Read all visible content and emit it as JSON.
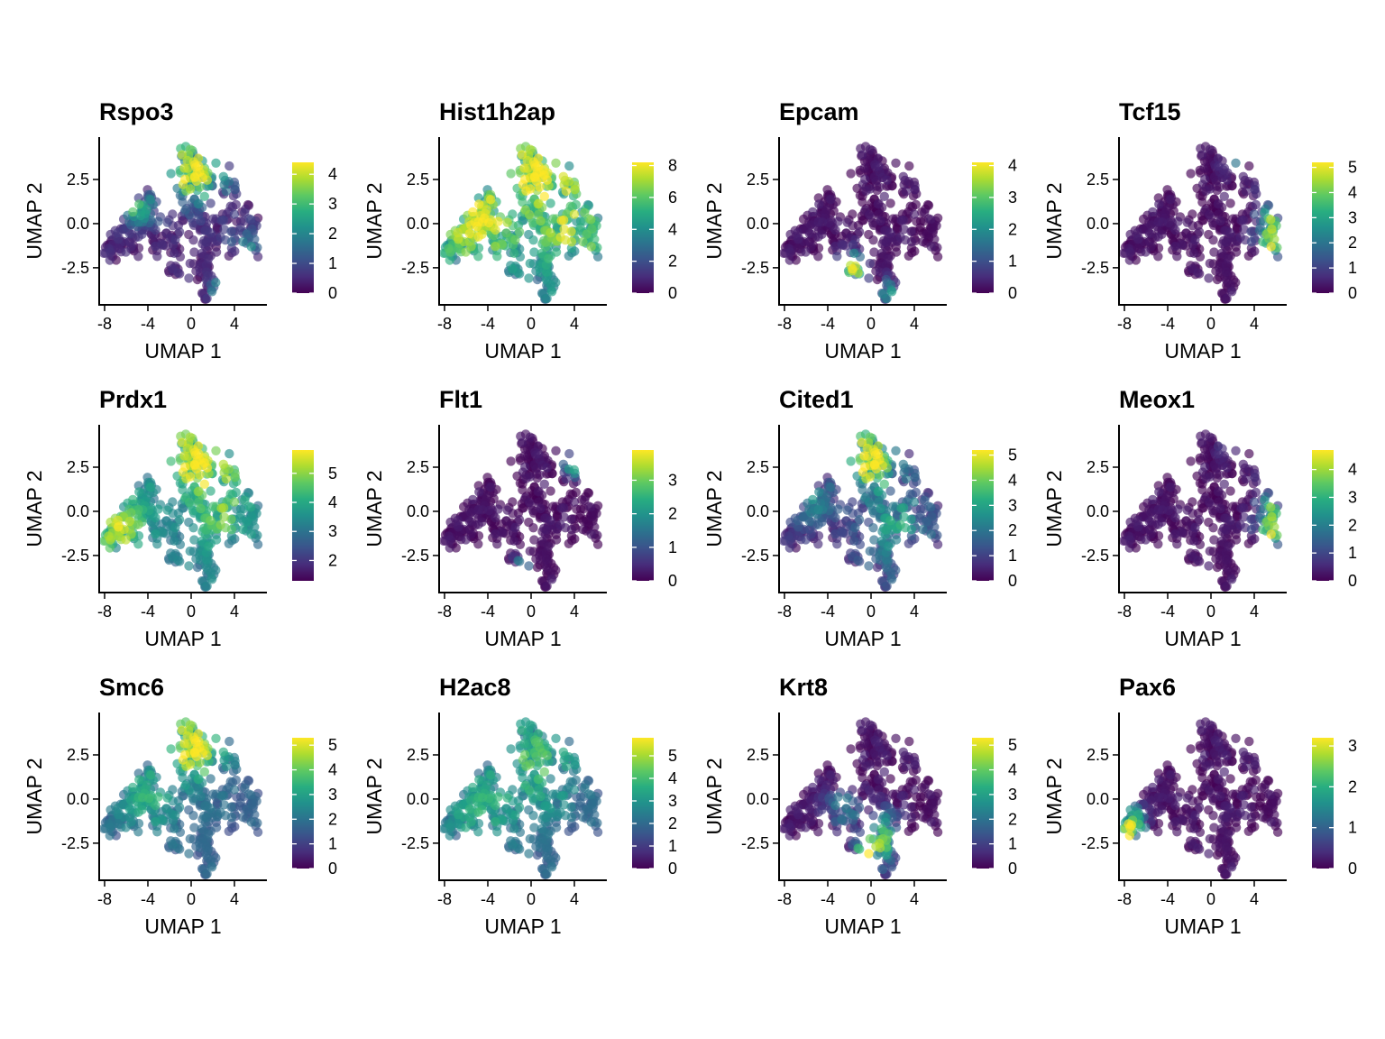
{
  "chart_data": [
    {
      "type": "scatter",
      "title": "Rspo3",
      "xlabel": "UMAP 1",
      "ylabel": "UMAP 2",
      "xticks": [
        -8,
        -4,
        0,
        4
      ],
      "yticks": [
        -2.5,
        0.0,
        2.5
      ],
      "xlim": [
        -8.5,
        7.0
      ],
      "ylim": [
        -4.6,
        4.9
      ],
      "colorbar": {
        "ticks": [
          0,
          1,
          2,
          3,
          4
        ],
        "max": 4.4
      },
      "hotspots": [
        {
          "x": 0,
          "y": 3,
          "sx": 2.2,
          "sy": 1.3,
          "v": 3.6
        },
        {
          "x": -5,
          "y": 0.8,
          "sx": 1.3,
          "sy": 0.6,
          "v": 2.2
        },
        {
          "x": 3.3,
          "y": -3.6,
          "sx": 0.8,
          "sy": 0.6,
          "v": 4.0
        },
        {
          "x": 5,
          "y": -1.5,
          "sx": 1,
          "sy": 1,
          "v": 1.8
        }
      ],
      "base": 0.3
    },
    {
      "type": "scatter",
      "title": "Hist1h2ap",
      "xlabel": "UMAP 1",
      "ylabel": "UMAP 2",
      "xticks": [
        -8,
        -4,
        0,
        4
      ],
      "yticks": [
        -2.5,
        0.0,
        2.5
      ],
      "xlim": [
        -8.5,
        7.0
      ],
      "ylim": [
        -4.6,
        4.9
      ],
      "colorbar": {
        "ticks": [
          0,
          2,
          4,
          6,
          8
        ],
        "max": 8.2
      },
      "hotspots": [
        {
          "x": -5,
          "y": 0,
          "sx": 3,
          "sy": 2,
          "v": 6.5
        },
        {
          "x": 0,
          "y": 3,
          "sx": 2.5,
          "sy": 1.5,
          "v": 6.5
        },
        {
          "x": 4,
          "y": -0.5,
          "sx": 2.5,
          "sy": 2.5,
          "v": 6.0
        }
      ],
      "base": 2.5
    },
    {
      "type": "scatter",
      "title": "Epcam",
      "xlabel": "UMAP 1",
      "ylabel": "UMAP 2",
      "xticks": [
        -8,
        -4,
        0,
        4
      ],
      "yticks": [
        -2.5,
        0.0,
        2.5
      ],
      "xlim": [
        -8.5,
        7.0
      ],
      "ylim": [
        -4.6,
        4.9
      ],
      "colorbar": {
        "ticks": [
          0,
          1,
          2,
          3,
          4
        ],
        "max": 4.1
      },
      "hotspots": [
        {
          "x": -1.8,
          "y": -2.5,
          "sx": 0.8,
          "sy": 0.6,
          "v": 3.4
        },
        {
          "x": 1.5,
          "y": -3.8,
          "sx": 0.6,
          "sy": 0.5,
          "v": 1.8
        }
      ],
      "base": 0.05
    },
    {
      "type": "scatter",
      "title": "Tcf15",
      "xlabel": "UMAP 1",
      "ylabel": "UMAP 2",
      "xticks": [
        -8,
        -4,
        0,
        4
      ],
      "yticks": [
        -2.5,
        0.0,
        2.5
      ],
      "xlim": [
        -8.5,
        7.0
      ],
      "ylim": [
        -4.6,
        4.9
      ],
      "colorbar": {
        "ticks": [
          0,
          1,
          2,
          3,
          4,
          5
        ],
        "max": 5.2
      },
      "hotspots": [
        {
          "x": 5.5,
          "y": -0.8,
          "sx": 0.9,
          "sy": 1.6,
          "v": 4.2
        },
        {
          "x": 2,
          "y": 3.6,
          "sx": 0.6,
          "sy": 0.4,
          "v": 2.0
        }
      ],
      "base": 0.05
    },
    {
      "type": "scatter",
      "title": "Prdx1",
      "xlabel": "UMAP 1",
      "ylabel": "UMAP 2",
      "xticks": [
        -8,
        -4,
        0,
        4
      ],
      "yticks": [
        -2.5,
        0.0,
        2.5
      ],
      "xlim": [
        -8.5,
        7.0
      ],
      "ylim": [
        -4.6,
        4.9
      ],
      "colorbar": {
        "ticks": [
          2,
          3,
          4,
          5
        ],
        "min": 1.3,
        "max": 5.8
      },
      "hotspots": [
        {
          "x": 0,
          "y": 3,
          "sx": 2.5,
          "sy": 1.5,
          "v": 5.0
        },
        {
          "x": -6.5,
          "y": -1,
          "sx": 1.8,
          "sy": 1.2,
          "v": 4.8
        },
        {
          "x": 3,
          "y": 0,
          "sx": 2,
          "sy": 2,
          "v": 4.2
        }
      ],
      "base": 3.0
    },
    {
      "type": "scatter",
      "title": "Flt1",
      "xlabel": "UMAP 1",
      "ylabel": "UMAP 2",
      "xticks": [
        -8,
        -4,
        0,
        4
      ],
      "yticks": [
        -2.5,
        0.0,
        2.5
      ],
      "xlim": [
        -8.5,
        7.0
      ],
      "ylim": [
        -4.6,
        4.9
      ],
      "colorbar": {
        "ticks": [
          0,
          1,
          2,
          3
        ],
        "max": 3.9
      },
      "hotspots": [
        {
          "x": 4,
          "y": 2.8,
          "sx": 0.6,
          "sy": 0.5,
          "v": 2.8
        },
        {
          "x": -1,
          "y": -3.2,
          "sx": 0.6,
          "sy": 0.4,
          "v": 1.6
        }
      ],
      "base": 0.02
    },
    {
      "type": "scatter",
      "title": "Cited1",
      "xlabel": "UMAP 1",
      "ylabel": "UMAP 2",
      "xticks": [
        -8,
        -4,
        0,
        4
      ],
      "yticks": [
        -2.5,
        0.0,
        2.5
      ],
      "xlim": [
        -8.5,
        7.0
      ],
      "ylim": [
        -4.6,
        4.9
      ],
      "colorbar": {
        "ticks": [
          0,
          1,
          2,
          3,
          4,
          5
        ],
        "max": 5.2
      },
      "hotspots": [
        {
          "x": -0.5,
          "y": 3,
          "sx": 1.8,
          "sy": 1.2,
          "v": 4.5
        },
        {
          "x": 2.5,
          "y": -1,
          "sx": 2.5,
          "sy": 2,
          "v": 2.3
        },
        {
          "x": -5.5,
          "y": 0.5,
          "sx": 1.5,
          "sy": 1,
          "v": 1.8
        }
      ],
      "base": 0.5
    },
    {
      "type": "scatter",
      "title": "Meox1",
      "xlabel": "UMAP 1",
      "ylabel": "UMAP 2",
      "xticks": [
        -8,
        -4,
        0,
        4
      ],
      "yticks": [
        -2.5,
        0.0,
        2.5
      ],
      "xlim": [
        -8.5,
        7.0
      ],
      "ylim": [
        -4.6,
        4.9
      ],
      "colorbar": {
        "ticks": [
          0,
          1,
          2,
          3,
          4
        ],
        "max": 4.7
      },
      "hotspots": [
        {
          "x": 5.5,
          "y": -1.0,
          "sx": 0.9,
          "sy": 1.6,
          "v": 3.8
        },
        {
          "x": 1.5,
          "y": 3.8,
          "sx": 0.5,
          "sy": 0.4,
          "v": 1.5
        }
      ],
      "base": 0.05
    },
    {
      "type": "scatter",
      "title": "Smc6",
      "xlabel": "UMAP 1",
      "ylabel": "UMAP 2",
      "xticks": [
        -8,
        -4,
        0,
        4
      ],
      "yticks": [
        -2.5,
        0.0,
        2.5
      ],
      "xlim": [
        -8.5,
        7.0
      ],
      "ylim": [
        -4.6,
        4.9
      ],
      "colorbar": {
        "ticks": [
          0,
          1,
          2,
          3,
          4,
          5
        ],
        "max": 5.3
      },
      "hotspots": [
        {
          "x": 0,
          "y": 3,
          "sx": 2,
          "sy": 1.3,
          "v": 4.6
        },
        {
          "x": -4,
          "y": 0,
          "sx": 2,
          "sy": 1.5,
          "v": 2.8
        }
      ],
      "base": 1.6
    },
    {
      "type": "scatter",
      "title": "H2ac8",
      "xlabel": "UMAP 1",
      "ylabel": "UMAP 2",
      "xticks": [
        -8,
        -4,
        0,
        4
      ],
      "yticks": [
        -2.5,
        0.0,
        2.5
      ],
      "xlim": [
        -8.5,
        7.0
      ],
      "ylim": [
        -4.6,
        4.9
      ],
      "colorbar": {
        "ticks": [
          0,
          1,
          2,
          3,
          4,
          5
        ],
        "max": 5.8
      },
      "hotspots": [
        {
          "x": 0,
          "y": 2,
          "sx": 3,
          "sy": 2,
          "v": 3.5
        },
        {
          "x": -5,
          "y": -1,
          "sx": 2,
          "sy": 1.5,
          "v": 3.0
        }
      ],
      "base": 1.8
    },
    {
      "type": "scatter",
      "title": "Krt8",
      "xlabel": "UMAP 1",
      "ylabel": "UMAP 2",
      "xticks": [
        -8,
        -4,
        0,
        4
      ],
      "yticks": [
        -2.5,
        0.0,
        2.5
      ],
      "xlim": [
        -8.5,
        7.0
      ],
      "ylim": [
        -4.6,
        4.9
      ],
      "colorbar": {
        "ticks": [
          0,
          1,
          2,
          3,
          4,
          5
        ],
        "max": 5.3
      },
      "hotspots": [
        {
          "x": -0.3,
          "y": -3.2,
          "sx": 0.8,
          "sy": 0.7,
          "v": 4.6
        },
        {
          "x": 1.2,
          "y": -2.2,
          "sx": 1.0,
          "sy": 1.0,
          "v": 3.0
        },
        {
          "x": -2.5,
          "y": -0.5,
          "sx": 1.2,
          "sy": 0.8,
          "v": 1.8
        }
      ],
      "base": 0.1
    },
    {
      "type": "scatter",
      "title": "Pax6",
      "xlabel": "UMAP 1",
      "ylabel": "UMAP 2",
      "xticks": [
        -8,
        -4,
        0,
        4
      ],
      "yticks": [
        -2.5,
        0.0,
        2.5
      ],
      "xlim": [
        -8.5,
        7.0
      ],
      "ylim": [
        -4.6,
        4.9
      ],
      "colorbar": {
        "ticks": [
          0,
          1,
          2,
          3
        ],
        "max": 3.2
      },
      "hotspots": [
        {
          "x": -7.3,
          "y": -1.8,
          "sx": 0.8,
          "sy": 0.9,
          "v": 2.6
        }
      ],
      "base": 0.05
    }
  ]
}
